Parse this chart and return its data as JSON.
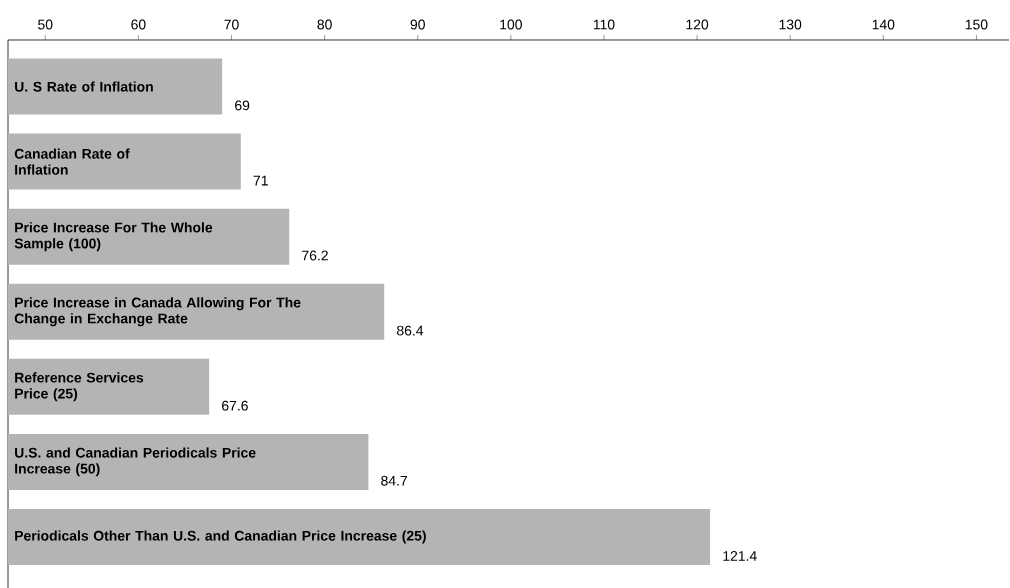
{
  "chart_data": {
    "type": "bar",
    "orientation": "horizontal",
    "categories": [
      "U. S Rate of Inflation",
      "Canadian Rate of Inflation",
      "Price Increase For The Whole Sample (100)",
      "Price Increase in Canada Allowing For The Change in Exchange Rate",
      "Reference Services Price (25)",
      "U.S. and Canadian Periodicals Price Increase (50)",
      "Periodicals Other Than U.S. and Canadian Price Increase (25)"
    ],
    "values": [
      69,
      71,
      76.2,
      86.4,
      67.6,
      84.7,
      121.4
    ],
    "color": "#b4b4b4",
    "data_labels": true,
    "grid": false,
    "xlim": [
      46,
      153.5
    ],
    "xticks": [
      50,
      60,
      70,
      80,
      90,
      100,
      110,
      120,
      130,
      140,
      150
    ]
  }
}
